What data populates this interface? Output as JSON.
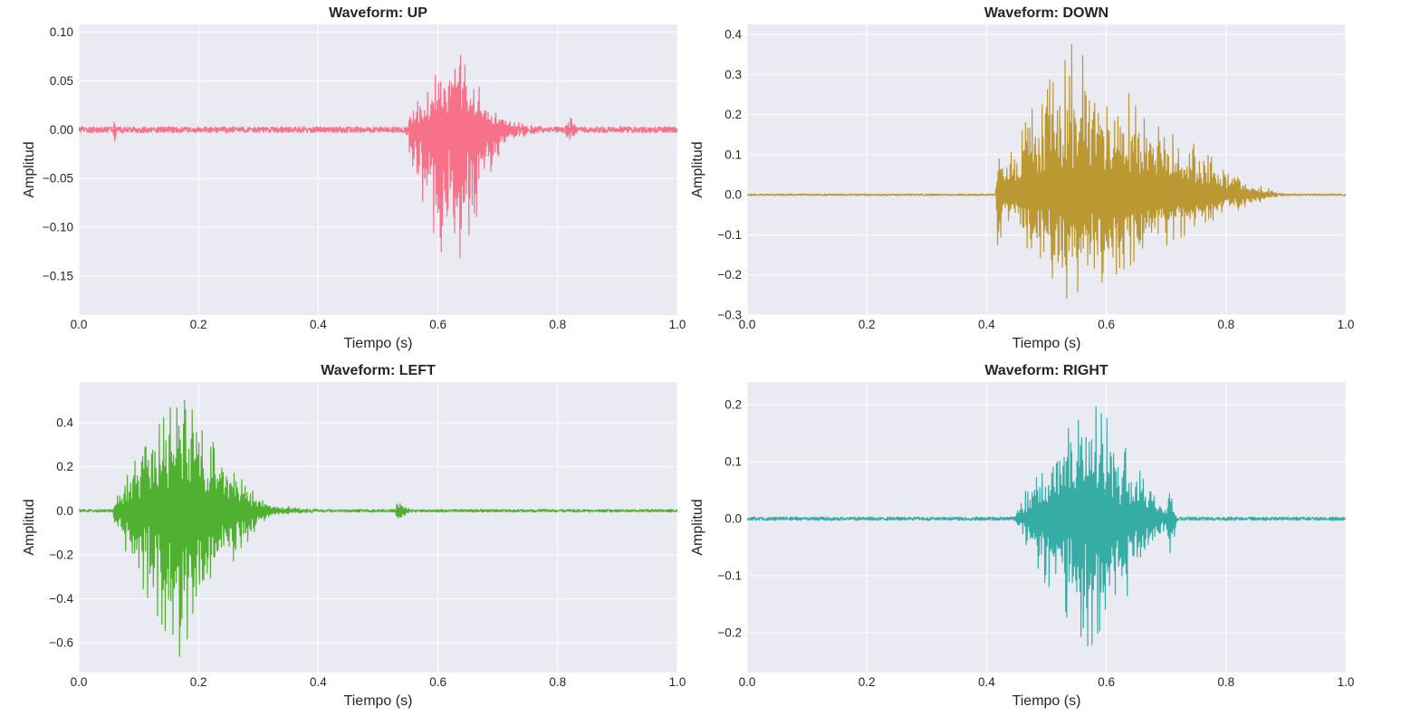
{
  "figure": {
    "style": {
      "plot_bg": "#eaeaf2",
      "grid": "#ffffff",
      "text": "#262626"
    }
  },
  "chart_data": [
    {
      "id": "up",
      "type": "line",
      "title": "Waveform: UP",
      "xlabel": "Tiempo (s)",
      "ylabel": "Amplitud",
      "xlim": [
        0.0,
        1.0
      ],
      "ylim": [
        -0.19,
        0.108
      ],
      "x_ticks": [
        0.0,
        0.2,
        0.4,
        0.6,
        0.8,
        1.0
      ],
      "x_tick_labels": [
        "0.0",
        "0.2",
        "0.4",
        "0.6",
        "0.8",
        "1.0"
      ],
      "y_ticks": [
        0.1,
        0.05,
        0.0,
        -0.05,
        -0.1,
        -0.15
      ],
      "y_tick_labels": [
        "0.10",
        "0.05",
        "0.00",
        "−0.05",
        "−0.10",
        "−0.15"
      ],
      "grid": true,
      "color": "#f77189",
      "series": [
        {
          "noise": 0.003,
          "bursts": [
            {
              "start": 0.545,
              "end": 0.72,
              "peak_t": 0.63,
              "amp_pos": 0.09,
              "amp_neg": 0.17
            },
            {
              "start": 0.0575,
              "end": 0.063,
              "peak_t": 0.06,
              "amp_pos": 0.016,
              "amp_neg": 0.028
            },
            {
              "start": 0.69,
              "end": 0.79,
              "peak_t": 0.71,
              "amp_pos": 0.012,
              "amp_neg": 0.012
            },
            {
              "start": 0.81,
              "end": 0.835,
              "peak_t": 0.822,
              "amp_pos": 0.012,
              "amp_neg": 0.015
            }
          ]
        }
      ]
    },
    {
      "id": "down",
      "type": "line",
      "title": "Waveform: DOWN",
      "xlabel": "Tiempo (s)",
      "ylabel": "Amplitud",
      "xlim": [
        0.0,
        1.0
      ],
      "ylim": [
        -0.3,
        0.425
      ],
      "x_ticks": [
        0.0,
        0.2,
        0.4,
        0.6,
        0.8,
        1.0
      ],
      "x_tick_labels": [
        "0.0",
        "0.2",
        "0.4",
        "0.6",
        "0.8",
        "1.0"
      ],
      "y_ticks": [
        0.4,
        0.3,
        0.2,
        0.1,
        0.0,
        -0.1,
        -0.2,
        -0.3
      ],
      "y_tick_labels": [
        "0.4",
        "0.3",
        "0.2",
        "0.1",
        "0.0",
        "−0.1",
        "−0.2",
        "−0.3"
      ],
      "grid": true,
      "color": "#bb9832",
      "series": [
        {
          "noise": 0.002,
          "bursts": [
            {
              "start": 0.415,
              "end": 0.9,
              "peak_t": 0.54,
              "amp_pos": 0.38,
              "amp_neg": 0.27
            },
            {
              "start": 0.415,
              "end": 0.43,
              "peak_t": 0.42,
              "amp_pos": 0.13,
              "amp_neg": 0.18
            }
          ]
        }
      ]
    },
    {
      "id": "left",
      "type": "line",
      "title": "Waveform: LEFT",
      "xlabel": "Tiempo (s)",
      "ylabel": "Amplitud",
      "xlim": [
        0.0,
        1.0
      ],
      "ylim": [
        -0.735,
        0.585
      ],
      "x_ticks": [
        0.0,
        0.2,
        0.4,
        0.6,
        0.8,
        1.0
      ],
      "x_tick_labels": [
        "0.0",
        "0.2",
        "0.4",
        "0.6",
        "0.8",
        "1.0"
      ],
      "y_ticks": [
        0.4,
        0.2,
        0.0,
        -0.2,
        -0.4,
        -0.6
      ],
      "y_tick_labels": [
        "0.4",
        "0.2",
        "0.0",
        "−0.2",
        "−0.4",
        "−0.6"
      ],
      "grid": true,
      "color": "#50b131",
      "series": [
        {
          "noise": 0.006,
          "bursts": [
            {
              "start": 0.055,
              "end": 0.33,
              "peak_t": 0.17,
              "amp_pos": 0.54,
              "amp_neg": 0.67
            },
            {
              "start": 0.3,
              "end": 0.42,
              "peak_t": 0.31,
              "amp_pos": 0.025,
              "amp_neg": 0.025
            },
            {
              "start": 0.528,
              "end": 0.56,
              "peak_t": 0.532,
              "amp_pos": 0.035,
              "amp_neg": 0.06
            }
          ]
        }
      ]
    },
    {
      "id": "right",
      "type": "line",
      "title": "Waveform: RIGHT",
      "xlabel": "Tiempo (s)",
      "ylabel": "Amplitud",
      "xlim": [
        0.0,
        1.0
      ],
      "ylim": [
        -0.27,
        0.24
      ],
      "x_ticks": [
        0.0,
        0.2,
        0.4,
        0.6,
        0.8,
        1.0
      ],
      "x_tick_labels": [
        "0.0",
        "0.2",
        "0.4",
        "0.6",
        "0.8",
        "1.0"
      ],
      "y_ticks": [
        0.2,
        0.1,
        0.0,
        -0.1,
        -0.2
      ],
      "y_tick_labels": [
        "0.2",
        "0.1",
        "0.0",
        "−0.1",
        "−0.2"
      ],
      "grid": true,
      "color": "#36ada4",
      "series": [
        {
          "noise": 0.003,
          "bursts": [
            {
              "start": 0.445,
              "end": 0.715,
              "peak_t": 0.585,
              "amp_pos": 0.225,
              "amp_neg": 0.25
            },
            {
              "start": 0.7,
              "end": 0.72,
              "peak_t": 0.705,
              "amp_pos": 0.05,
              "amp_neg": 0.1
            }
          ]
        }
      ]
    }
  ]
}
